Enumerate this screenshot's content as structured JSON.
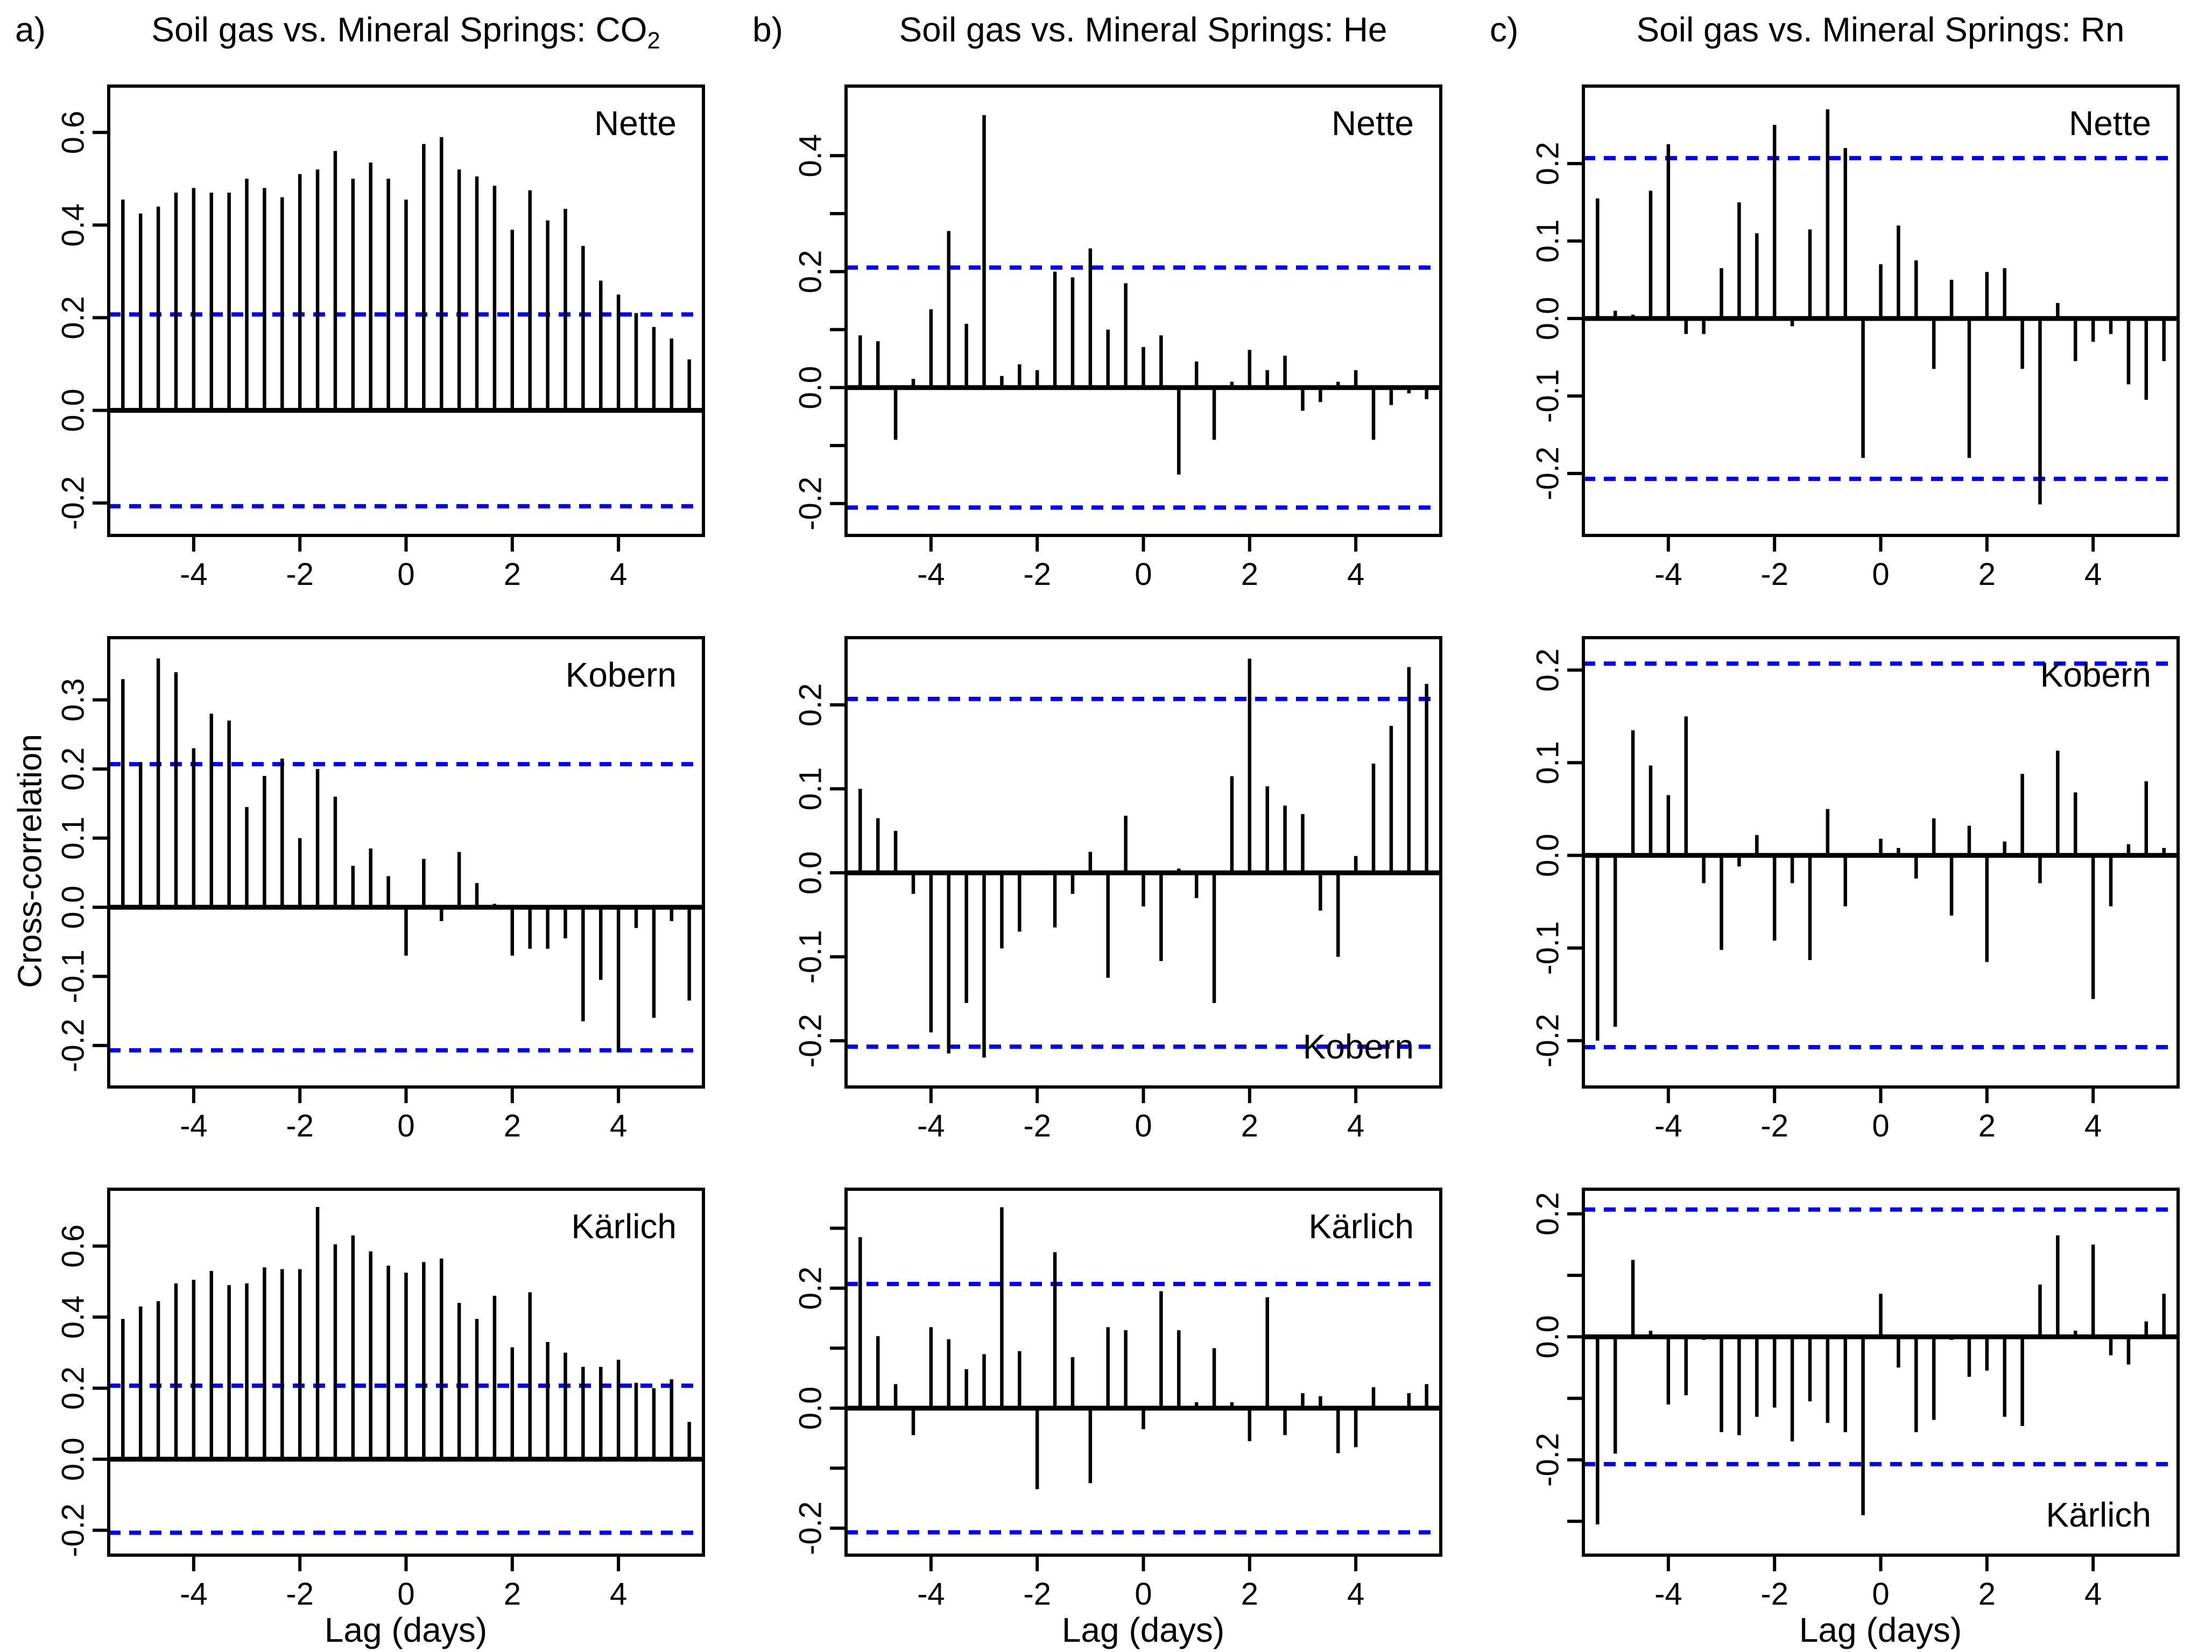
{
  "figure": {
    "panel_letters": [
      "a)",
      "b)",
      "c)"
    ],
    "titles": [
      {
        "text": "Soil gas vs. Mineral Springs: CO",
        "subscript": "2"
      },
      {
        "text": "Soil gas vs. Mineral Springs: He",
        "subscript": ""
      },
      {
        "text": "Soil gas vs. Mineral Springs: Rn",
        "subscript": ""
      }
    ],
    "y_axis_title": "Cross-correlation",
    "x_axis_title": "Lag (days)",
    "colors": {
      "bar": "#000000",
      "confidence_line": "#0000EE",
      "frame": "#000000",
      "background": "#ffffff"
    }
  },
  "chart_data": [
    {
      "type": "bar",
      "station": "Nette",
      "gas": "CO2",
      "col": 0,
      "row": 0,
      "label_pos": "tr",
      "ylim": [
        -0.27,
        0.7
      ],
      "conf_upper": 0.207,
      "conf_lower": -0.207,
      "lag_start": -5.3333,
      "lag_step": 0.33333,
      "xticks": [
        -4,
        -2,
        0,
        2,
        4
      ],
      "yticks": [
        {
          "v": 0.6,
          "label": "0.6"
        },
        {
          "v": 0.4,
          "label": "0.4"
        },
        {
          "v": 0.2,
          "label": "0.2"
        },
        {
          "v": 0.0,
          "label": "0.0"
        },
        {
          "v": -0.2,
          "label": "-0.2"
        }
      ],
      "values": [
        0.455,
        0.425,
        0.44,
        0.47,
        0.48,
        0.47,
        0.47,
        0.5,
        0.48,
        0.46,
        0.51,
        0.52,
        0.56,
        0.5,
        0.535,
        0.5,
        0.455,
        0.575,
        0.59,
        0.52,
        0.505,
        0.485,
        0.39,
        0.475,
        0.41,
        0.435,
        0.355,
        0.28,
        0.25,
        0.21,
        0.18,
        0.155,
        0.11
      ]
    },
    {
      "type": "bar",
      "station": "Kobern",
      "gas": "CO2",
      "col": 0,
      "row": 1,
      "label_pos": "tr",
      "ylim": [
        -0.26,
        0.39
      ],
      "conf_upper": 0.207,
      "conf_lower": -0.207,
      "lag_start": -5.3333,
      "lag_step": 0.33333,
      "xticks": [
        -4,
        -2,
        0,
        2,
        4
      ],
      "yticks": [
        {
          "v": 0.3,
          "label": "0.3"
        },
        {
          "v": 0.2,
          "label": "0.2"
        },
        {
          "v": 0.1,
          "label": "0.1"
        },
        {
          "v": 0.0,
          "label": "0.0"
        },
        {
          "v": -0.1,
          "label": "-0.1"
        },
        {
          "v": -0.2,
          "label": "-0.2"
        }
      ],
      "values": [
        0.33,
        0.21,
        0.36,
        0.34,
        0.23,
        0.28,
        0.27,
        0.145,
        0.19,
        0.215,
        0.1,
        0.2,
        0.16,
        0.06,
        0.085,
        0.045,
        -0.07,
        0.07,
        -0.02,
        0.08,
        0.035,
        0.005,
        -0.07,
        -0.06,
        -0.06,
        -0.045,
        -0.165,
        -0.105,
        -0.21,
        -0.03,
        -0.16,
        -0.02,
        -0.135
      ]
    },
    {
      "type": "bar",
      "station": "Kärlich",
      "gas": "CO2",
      "col": 0,
      "row": 2,
      "label_pos": "tr",
      "ylim": [
        -0.27,
        0.76
      ],
      "conf_upper": 0.207,
      "conf_lower": -0.207,
      "lag_start": -5.3333,
      "lag_step": 0.33333,
      "xticks": [
        -4,
        -2,
        0,
        2,
        4
      ],
      "yticks": [
        {
          "v": 0.6,
          "label": "0.6"
        },
        {
          "v": 0.4,
          "label": "0.4"
        },
        {
          "v": 0.2,
          "label": "0.2"
        },
        {
          "v": 0.0,
          "label": "0.0"
        },
        {
          "v": -0.2,
          "label": "-0.2"
        }
      ],
      "values": [
        0.395,
        0.43,
        0.445,
        0.495,
        0.505,
        0.53,
        0.49,
        0.495,
        0.54,
        0.535,
        0.535,
        0.71,
        0.605,
        0.63,
        0.585,
        0.545,
        0.525,
        0.555,
        0.565,
        0.44,
        0.395,
        0.46,
        0.315,
        0.47,
        0.33,
        0.3,
        0.26,
        0.26,
        0.28,
        0.215,
        0.2,
        0.225,
        0.105
      ]
    },
    {
      "type": "bar",
      "station": "Nette",
      "gas": "He",
      "col": 1,
      "row": 0,
      "label_pos": "tr",
      "ylim": [
        -0.255,
        0.52
      ],
      "conf_upper": 0.207,
      "conf_lower": -0.207,
      "lag_start": -5.3333,
      "lag_step": 0.33333,
      "xticks": [
        -4,
        -2,
        0,
        2,
        4
      ],
      "yticks": [
        {
          "v": 0.4,
          "label": "0.4"
        },
        {
          "v": 0.3,
          "label": ""
        },
        {
          "v": 0.2,
          "label": "0.2"
        },
        {
          "v": 0.1,
          "label": ""
        },
        {
          "v": 0.0,
          "label": "0.0"
        },
        {
          "v": -0.1,
          "label": ""
        },
        {
          "v": -0.2,
          "label": "-0.2"
        }
      ],
      "values": [
        0.09,
        0.08,
        -0.09,
        0.015,
        0.135,
        0.27,
        0.11,
        0.47,
        0.02,
        0.04,
        0.03,
        0.2,
        0.19,
        0.24,
        0.1,
        0.18,
        0.07,
        0.09,
        -0.15,
        0.045,
        -0.09,
        0.01,
        0.065,
        0.03,
        0.055,
        -0.04,
        -0.025,
        0.01,
        0.03,
        -0.09,
        -0.03,
        -0.01,
        -0.02
      ]
    },
    {
      "type": "bar",
      "station": "Kobern",
      "gas": "He",
      "col": 1,
      "row": 1,
      "label_pos": "br",
      "ylim": [
        -0.255,
        0.28
      ],
      "conf_upper": 0.207,
      "conf_lower": -0.207,
      "lag_start": -5.3333,
      "lag_step": 0.33333,
      "xticks": [
        -4,
        -2,
        0,
        2,
        4
      ],
      "yticks": [
        {
          "v": 0.2,
          "label": "0.2"
        },
        {
          "v": 0.1,
          "label": "0.1"
        },
        {
          "v": 0.0,
          "label": "0.0"
        },
        {
          "v": -0.1,
          "label": "-0.1"
        },
        {
          "v": -0.2,
          "label": "-0.2"
        }
      ],
      "values": [
        0.1,
        0.065,
        0.05,
        -0.025,
        -0.19,
        -0.215,
        -0.155,
        -0.22,
        -0.09,
        -0.07,
        0.003,
        -0.065,
        -0.025,
        0.025,
        -0.125,
        0.068,
        -0.04,
        -0.105,
        0.005,
        -0.03,
        -0.155,
        0.115,
        0.255,
        0.103,
        0.08,
        0.07,
        -0.045,
        -0.1,
        0.02,
        0.13,
        0.175,
        0.245,
        0.225
      ]
    },
    {
      "type": "bar",
      "station": "Kärlich",
      "gas": "He",
      "col": 1,
      "row": 2,
      "label_pos": "tr",
      "ylim": [
        -0.245,
        0.365
      ],
      "conf_upper": 0.207,
      "conf_lower": -0.207,
      "lag_start": -5.3333,
      "lag_step": 0.33333,
      "xticks": [
        -4,
        -2,
        0,
        2,
        4
      ],
      "yticks": [
        {
          "v": 0.3,
          "label": ""
        },
        {
          "v": 0.2,
          "label": "0.2"
        },
        {
          "v": 0.1,
          "label": ""
        },
        {
          "v": 0.0,
          "label": "0.0"
        },
        {
          "v": -0.1,
          "label": ""
        },
        {
          "v": -0.2,
          "label": "-0.2"
        }
      ],
      "values": [
        0.285,
        0.12,
        0.04,
        -0.045,
        0.135,
        0.115,
        0.065,
        0.09,
        0.335,
        0.095,
        -0.135,
        0.26,
        0.085,
        -0.125,
        0.135,
        0.13,
        -0.035,
        0.195,
        0.13,
        0.01,
        0.1,
        0.01,
        -0.055,
        0.185,
        -0.045,
        0.025,
        0.02,
        -0.075,
        -0.065,
        0.035,
        0.0,
        0.025,
        0.04
      ]
    },
    {
      "type": "bar",
      "station": "Nette",
      "gas": "Rn",
      "col": 2,
      "row": 0,
      "label_pos": "tr",
      "ylim": [
        -0.28,
        0.3
      ],
      "conf_upper": 0.207,
      "conf_lower": -0.207,
      "lag_start": -5.3333,
      "lag_step": 0.33333,
      "xticks": [
        -4,
        -2,
        0,
        2,
        4
      ],
      "yticks": [
        {
          "v": 0.2,
          "label": "0.2"
        },
        {
          "v": 0.1,
          "label": "0.1"
        },
        {
          "v": 0.0,
          "label": "0.0"
        },
        {
          "v": -0.1,
          "label": "-0.1"
        },
        {
          "v": -0.2,
          "label": "-0.2"
        }
      ],
      "values": [
        0.155,
        0.01,
        0.005,
        0.165,
        0.225,
        -0.02,
        -0.02,
        0.065,
        0.15,
        0.11,
        0.25,
        -0.01,
        0.115,
        0.27,
        0.22,
        -0.18,
        0.07,
        0.12,
        0.075,
        -0.065,
        0.05,
        -0.18,
        0.06,
        0.065,
        -0.065,
        -0.24,
        0.02,
        -0.055,
        -0.03,
        -0.02,
        -0.085,
        -0.105,
        -0.055
      ]
    },
    {
      "type": "bar",
      "station": "Kobern",
      "gas": "Rn",
      "col": 2,
      "row": 1,
      "label_pos": "tr",
      "ylim": [
        -0.25,
        0.235
      ],
      "conf_upper": 0.207,
      "conf_lower": -0.207,
      "lag_start": -5.3333,
      "lag_step": 0.33333,
      "xticks": [
        -4,
        -2,
        0,
        2,
        4
      ],
      "yticks": [
        {
          "v": 0.2,
          "label": "0.2"
        },
        {
          "v": 0.1,
          "label": "0.1"
        },
        {
          "v": 0.0,
          "label": "0.0"
        },
        {
          "v": -0.1,
          "label": "-0.1"
        },
        {
          "v": -0.2,
          "label": "-0.2"
        }
      ],
      "values": [
        -0.2,
        -0.185,
        0.135,
        0.097,
        0.065,
        0.15,
        -0.03,
        -0.102,
        -0.012,
        0.022,
        -0.092,
        -0.03,
        -0.113,
        0.05,
        -0.055,
        0.002,
        0.018,
        0.008,
        -0.025,
        0.04,
        -0.065,
        0.032,
        -0.115,
        0.015,
        0.088,
        -0.03,
        0.113,
        0.068,
        -0.155,
        -0.055,
        0.012,
        0.08,
        0.008
      ]
    },
    {
      "type": "bar",
      "station": "Kärlich",
      "gas": "Rn",
      "col": 2,
      "row": 2,
      "label_pos": "br",
      "ylim": [
        -0.355,
        0.24
      ],
      "conf_upper": 0.207,
      "conf_lower": -0.207,
      "lag_start": -5.3333,
      "lag_step": 0.33333,
      "xticks": [
        -4,
        -2,
        0,
        2,
        4
      ],
      "yticks": [
        {
          "v": 0.2,
          "label": "0.2"
        },
        {
          "v": 0.1,
          "label": ""
        },
        {
          "v": 0.0,
          "label": "0.0"
        },
        {
          "v": -0.1,
          "label": ""
        },
        {
          "v": -0.2,
          "label": "-0.2"
        },
        {
          "v": -0.3,
          "label": ""
        }
      ],
      "values": [
        -0.305,
        -0.19,
        0.125,
        0.01,
        -0.11,
        -0.095,
        -0.005,
        -0.155,
        -0.16,
        -0.13,
        -0.115,
        -0.17,
        -0.105,
        -0.14,
        -0.155,
        -0.29,
        0.07,
        -0.05,
        -0.155,
        -0.135,
        -0.005,
        -0.065,
        -0.055,
        -0.13,
        -0.145,
        0.085,
        0.165,
        0.01,
        0.15,
        -0.03,
        -0.045,
        0.025,
        0.07
      ]
    }
  ]
}
